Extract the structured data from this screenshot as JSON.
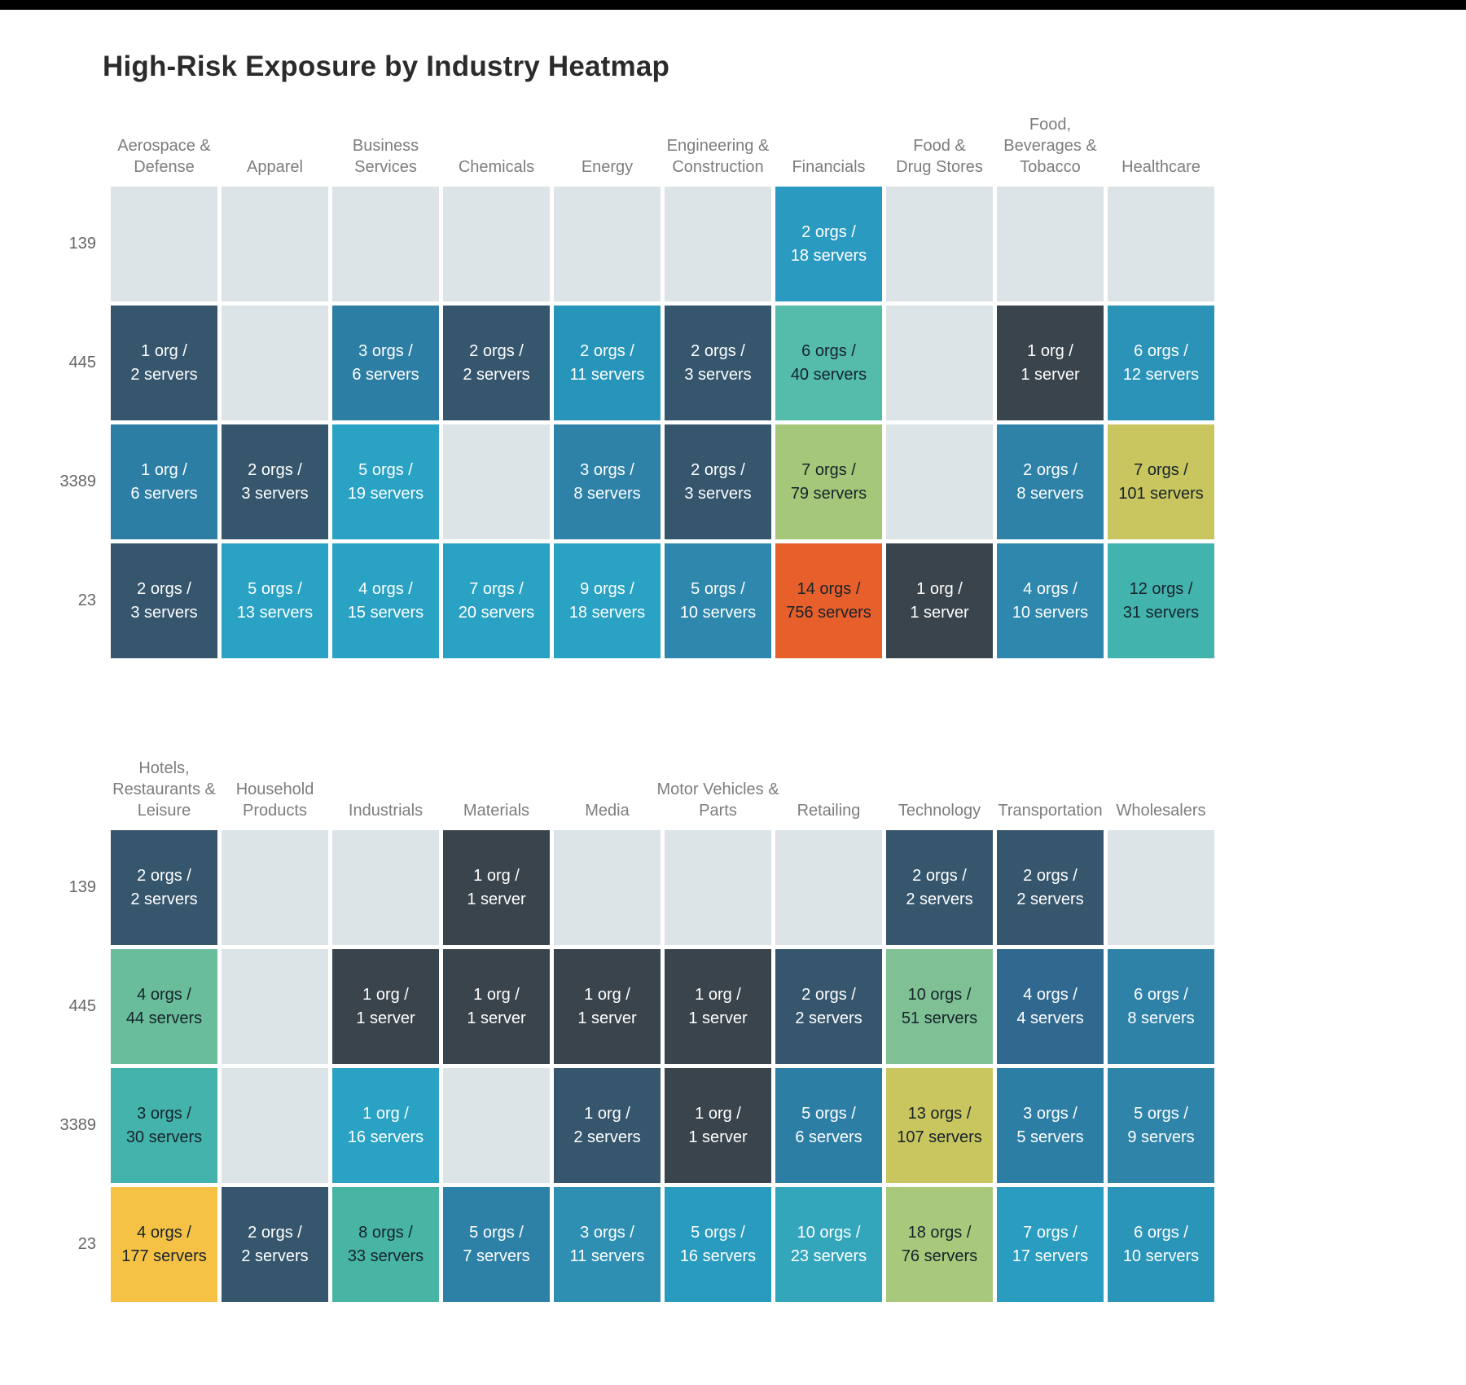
{
  "page": {
    "top_bar_color": "#000000",
    "background": "#ffffff"
  },
  "chart_data": {
    "type": "heatmap",
    "title": "High-Risk Exposure by Industry Heatmap",
    "row_labels": [
      "139",
      "445",
      "3389",
      "23"
    ],
    "cell_value_format": "{orgs} orgs / {servers} servers",
    "empty_color": "#dce4e8",
    "legend_position": "none",
    "panels": [
      {
        "columns": [
          "Aerospace &\nDefense",
          "Apparel",
          "Business\nServices",
          "Chemicals",
          "Energy",
          "Engineering &\nConstruction",
          "Financials",
          "Food &\nDrug Stores",
          "Food,\nBeverages &\nTobacco",
          "Healthcare"
        ],
        "rows": [
          [
            null,
            null,
            null,
            null,
            null,
            null,
            {
              "orgs": 2,
              "servers": 18,
              "label": "2 orgs /\n18 servers",
              "bg": "#2a9ac1",
              "fg": "#ffffff"
            },
            null,
            null,
            null
          ],
          [
            {
              "orgs": 1,
              "servers": 2,
              "label": "1 org /\n2 servers",
              "bg": "#35566d",
              "fg": "#ffffff"
            },
            null,
            {
              "orgs": 3,
              "servers": 6,
              "label": "3 orgs /\n6 servers",
              "bg": "#2d7ea4",
              "fg": "#ffffff"
            },
            {
              "orgs": 2,
              "servers": 2,
              "label": "2 orgs /\n2 servers",
              "bg": "#35566d",
              "fg": "#ffffff"
            },
            {
              "orgs": 2,
              "servers": 11,
              "label": "2 orgs /\n11 servers",
              "bg": "#2795ba",
              "fg": "#ffffff"
            },
            {
              "orgs": 2,
              "servers": 3,
              "label": "2 orgs /\n3 servers",
              "bg": "#35566d",
              "fg": "#ffffff"
            },
            {
              "orgs": 6,
              "servers": 40,
              "label": "6 orgs /\n40 servers",
              "bg": "#55bcab",
              "fg": "#16232b"
            },
            null,
            {
              "orgs": 1,
              "servers": 1,
              "label": "1 org /\n1 server",
              "bg": "#3a444c",
              "fg": "#ffffff"
            },
            {
              "orgs": 6,
              "servers": 12,
              "label": "6 orgs /\n12 servers",
              "bg": "#2b93b8",
              "fg": "#ffffff"
            }
          ],
          [
            {
              "orgs": 1,
              "servers": 6,
              "label": "1 org /\n6 servers",
              "bg": "#2d7ea4",
              "fg": "#ffffff"
            },
            {
              "orgs": 2,
              "servers": 3,
              "label": "2 orgs /\n3 servers",
              "bg": "#35566d",
              "fg": "#ffffff"
            },
            {
              "orgs": 5,
              "servers": 19,
              "label": "5 orgs /\n19 servers",
              "bg": "#29a2c4",
              "fg": "#ffffff"
            },
            null,
            {
              "orgs": 3,
              "servers": 8,
              "label": "3 orgs /\n8 servers",
              "bg": "#2e82a8",
              "fg": "#ffffff"
            },
            {
              "orgs": 2,
              "servers": 3,
              "label": "2 orgs /\n3 servers",
              "bg": "#35566d",
              "fg": "#ffffff"
            },
            {
              "orgs": 7,
              "servers": 79,
              "label": "7 orgs /\n79 servers",
              "bg": "#a5c779",
              "fg": "#16232b"
            },
            null,
            {
              "orgs": 2,
              "servers": 8,
              "label": "2 orgs /\n8 servers",
              "bg": "#2e82a8",
              "fg": "#ffffff"
            },
            {
              "orgs": 7,
              "servers": 101,
              "label": "7 orgs /\n101 servers",
              "bg": "#c9c55f",
              "fg": "#16232b"
            }
          ],
          [
            {
              "orgs": 2,
              "servers": 3,
              "label": "2 orgs /\n3 servers",
              "bg": "#35566d",
              "fg": "#ffffff"
            },
            {
              "orgs": 5,
              "servers": 13,
              "label": "5 orgs /\n13 servers",
              "bg": "#29a2c4",
              "fg": "#ffffff"
            },
            {
              "orgs": 4,
              "servers": 15,
              "label": "4 orgs /\n15 servers",
              "bg": "#29a2c4",
              "fg": "#ffffff"
            },
            {
              "orgs": 7,
              "servers": 20,
              "label": "7 orgs /\n20 servers",
              "bg": "#29a2c4",
              "fg": "#ffffff"
            },
            {
              "orgs": 9,
              "servers": 18,
              "label": "9 orgs /\n18 servers",
              "bg": "#29a2c4",
              "fg": "#ffffff"
            },
            {
              "orgs": 5,
              "servers": 10,
              "label": "5 orgs /\n10 servers",
              "bg": "#2e87ac",
              "fg": "#ffffff"
            },
            {
              "orgs": 14,
              "servers": 756,
              "label": "14 orgs /\n756 servers",
              "bg": "#e75f2b",
              "fg": "#16232b"
            },
            {
              "orgs": 1,
              "servers": 1,
              "label": "1 org /\n1 server",
              "bg": "#3a444c",
              "fg": "#ffffff"
            },
            {
              "orgs": 4,
              "servers": 10,
              "label": "4 orgs /\n10 servers",
              "bg": "#2e87ac",
              "fg": "#ffffff"
            },
            {
              "orgs": 12,
              "servers": 31,
              "label": "12 orgs /\n31 servers",
              "bg": "#43b3ad",
              "fg": "#16232b"
            }
          ]
        ]
      },
      {
        "columns": [
          "Hotels,\nRestaurants &\nLeisure",
          "Household\nProducts",
          "Industrials",
          "Materials",
          "Media",
          "Motor Vehicles &\nParts",
          "Retailing",
          "Technology",
          "Transportation",
          "Wholesalers"
        ],
        "rows": [
          [
            {
              "orgs": 2,
              "servers": 2,
              "label": "2 orgs /\n2 servers",
              "bg": "#35566d",
              "fg": "#ffffff"
            },
            null,
            null,
            {
              "orgs": 1,
              "servers": 1,
              "label": "1 org /\n1 server",
              "bg": "#3a444c",
              "fg": "#ffffff"
            },
            null,
            null,
            null,
            {
              "orgs": 2,
              "servers": 2,
              "label": "2 orgs /\n2 servers",
              "bg": "#35566d",
              "fg": "#ffffff"
            },
            {
              "orgs": 2,
              "servers": 2,
              "label": "2 orgs /\n2 servers",
              "bg": "#35566d",
              "fg": "#ffffff"
            },
            null
          ],
          [
            {
              "orgs": 4,
              "servers": 44,
              "label": "4 orgs /\n44 servers",
              "bg": "#69bd9a",
              "fg": "#16232b"
            },
            null,
            {
              "orgs": 1,
              "servers": 1,
              "label": "1 org /\n1 server",
              "bg": "#3a444c",
              "fg": "#ffffff"
            },
            {
              "orgs": 1,
              "servers": 1,
              "label": "1 org /\n1 server",
              "bg": "#3a444c",
              "fg": "#ffffff"
            },
            {
              "orgs": 1,
              "servers": 1,
              "label": "1 org /\n1 server",
              "bg": "#3a444c",
              "fg": "#ffffff"
            },
            {
              "orgs": 1,
              "servers": 1,
              "label": "1 org /\n1 server",
              "bg": "#3a444c",
              "fg": "#ffffff"
            },
            {
              "orgs": 2,
              "servers": 2,
              "label": "2 orgs /\n2 servers",
              "bg": "#35566d",
              "fg": "#ffffff"
            },
            {
              "orgs": 10,
              "servers": 51,
              "label": "10 orgs /\n51 servers",
              "bg": "#7fc194",
              "fg": "#16232b"
            },
            {
              "orgs": 4,
              "servers": 4,
              "label": "4 orgs /\n4 servers",
              "bg": "#31688f",
              "fg": "#ffffff"
            },
            {
              "orgs": 6,
              "servers": 8,
              "label": "6 orgs /\n8 servers",
              "bg": "#2e82a8",
              "fg": "#ffffff"
            }
          ],
          [
            {
              "orgs": 3,
              "servers": 30,
              "label": "3 orgs /\n30 servers",
              "bg": "#44b3ab",
              "fg": "#16232b"
            },
            null,
            {
              "orgs": 1,
              "servers": 16,
              "label": "1 org /\n16 servers",
              "bg": "#29a2c4",
              "fg": "#ffffff"
            },
            null,
            {
              "orgs": 1,
              "servers": 2,
              "label": "1 org /\n2 servers",
              "bg": "#35566d",
              "fg": "#ffffff"
            },
            {
              "orgs": 1,
              "servers": 1,
              "label": "1 org /\n1 server",
              "bg": "#3a444c",
              "fg": "#ffffff"
            },
            {
              "orgs": 5,
              "servers": 6,
              "label": "5 orgs /\n6 servers",
              "bg": "#2d7ea4",
              "fg": "#ffffff"
            },
            {
              "orgs": 13,
              "servers": 107,
              "label": "13 orgs /\n107 servers",
              "bg": "#c9c55f",
              "fg": "#16232b"
            },
            {
              "orgs": 3,
              "servers": 5,
              "label": "3 orgs /\n5 servers",
              "bg": "#2d7ea4",
              "fg": "#ffffff"
            },
            {
              "orgs": 5,
              "servers": 9,
              "label": "5 orgs /\n9 servers",
              "bg": "#2e84a9",
              "fg": "#ffffff"
            }
          ],
          [
            {
              "orgs": 4,
              "servers": 177,
              "label": "4 orgs /\n177 servers",
              "bg": "#f6c245",
              "fg": "#16232b"
            },
            {
              "orgs": 2,
              "servers": 2,
              "label": "2 orgs /\n2 servers",
              "bg": "#35566d",
              "fg": "#ffffff"
            },
            {
              "orgs": 8,
              "servers": 33,
              "label": "8 orgs /\n33 servers",
              "bg": "#48b4a4",
              "fg": "#16232b"
            },
            {
              "orgs": 5,
              "servers": 7,
              "label": "5 orgs /\n7 servers",
              "bg": "#2d81a6",
              "fg": "#ffffff"
            },
            {
              "orgs": 3,
              "servers": 11,
              "label": "3 orgs /\n11 servers",
              "bg": "#2e8fb2",
              "fg": "#ffffff"
            },
            {
              "orgs": 5,
              "servers": 16,
              "label": "5 orgs /\n16 servers",
              "bg": "#299bbf",
              "fg": "#ffffff"
            },
            {
              "orgs": 10,
              "servers": 23,
              "label": "10 orgs /\n23 servers",
              "bg": "#33a6bc",
              "fg": "#ffffff"
            },
            {
              "orgs": 18,
              "servers": 76,
              "label": "18 orgs /\n76 servers",
              "bg": "#a8c87b",
              "fg": "#16232b"
            },
            {
              "orgs": 7,
              "servers": 17,
              "label": "7 orgs /\n17 servers",
              "bg": "#299cc0",
              "fg": "#ffffff"
            },
            {
              "orgs": 6,
              "servers": 10,
              "label": "6 orgs /\n10 servers",
              "bg": "#2b95b9",
              "fg": "#ffffff"
            }
          ]
        ]
      }
    ]
  }
}
